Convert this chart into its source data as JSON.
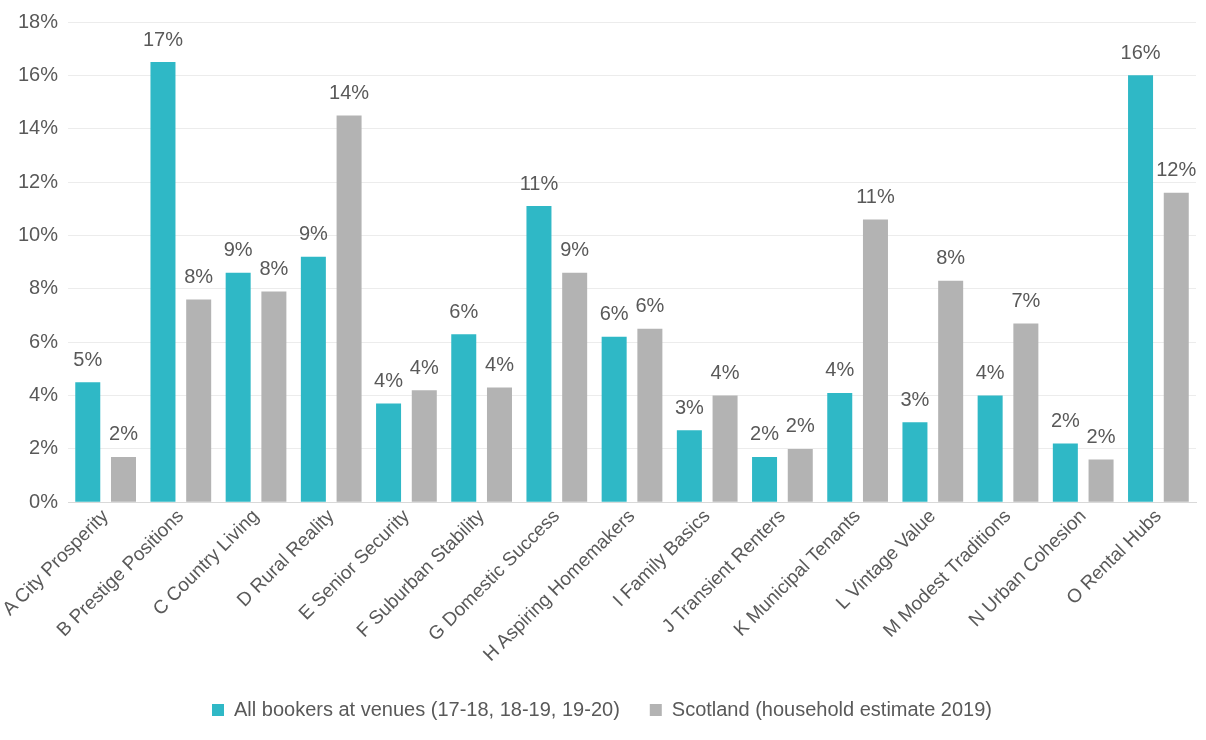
{
  "chart_data": {
    "type": "bar",
    "categories": [
      "A City Prosperity",
      "B Prestige Positions",
      "C Country Living",
      "D Rural Reality",
      "E Senior Security",
      "F Suburban Stability",
      "G Domestic Success",
      "H Aspiring Homemakers",
      "I Family Basics",
      "J Transient Renters",
      "K Municipal Tenants",
      "L Vintage Value",
      "M Modest Traditions",
      "N Urban Cohesion",
      "O Rental Hubs"
    ],
    "series": [
      {
        "name": "All bookers at venues (17-18, 18-19, 19-20)",
        "color": "#2fb8c6",
        "values": [
          4.5,
          16.5,
          8.6,
          9.2,
          3.7,
          6.3,
          11.1,
          6.2,
          2.7,
          1.7,
          4.1,
          3.0,
          4.0,
          2.2,
          16.0
        ],
        "value_labels": [
          "5%",
          "17%",
          "9%",
          "9%",
          "4%",
          "6%",
          "11%",
          "6%",
          "3%",
          "2%",
          "4%",
          "3%",
          "4%",
          "2%",
          "16%"
        ]
      },
      {
        "name": "Scotland (household estimate 2019)",
        "color": "#b3b3b3",
        "values": [
          1.7,
          7.6,
          7.9,
          14.5,
          4.2,
          4.3,
          8.6,
          6.5,
          4.0,
          2.0,
          10.6,
          8.3,
          6.7,
          1.6,
          11.6
        ],
        "value_labels": [
          "2%",
          "8%",
          "8%",
          "14%",
          "4%",
          "4%",
          "9%",
          "6%",
          "4%",
          "2%",
          "11%",
          "8%",
          "7%",
          "2%",
          "12%"
        ]
      }
    ],
    "ylim": [
      0,
      18
    ],
    "yticks": [
      {
        "value": 0,
        "label": "0%"
      },
      {
        "value": 2,
        "label": "2%"
      },
      {
        "value": 4,
        "label": "4%"
      },
      {
        "value": 6,
        "label": "6%"
      },
      {
        "value": 8,
        "label": "8%"
      },
      {
        "value": 10,
        "label": "10%"
      },
      {
        "value": 12,
        "label": "12%"
      },
      {
        "value": 14,
        "label": "14%"
      },
      {
        "value": 16,
        "label": "16%"
      },
      {
        "value": 18,
        "label": "18%"
      }
    ],
    "grid": "y",
    "legend": "bottom"
  }
}
